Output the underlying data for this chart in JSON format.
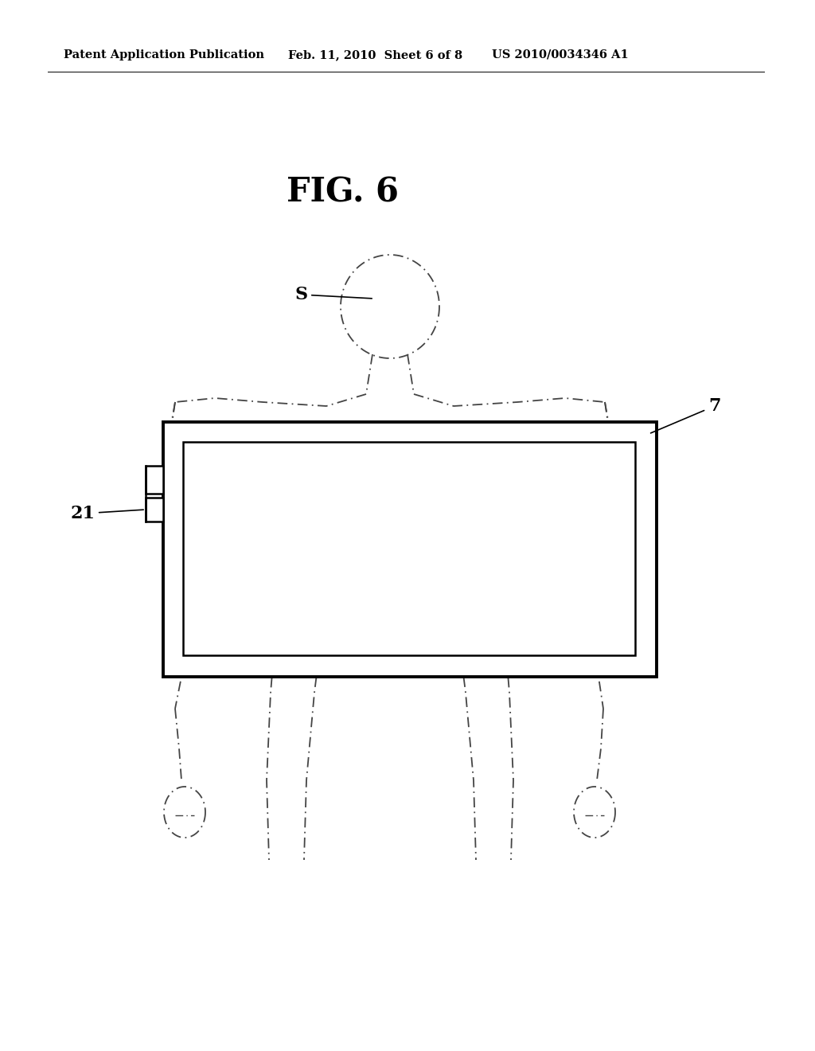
{
  "title": "FIG. 6",
  "header_left": "Patent Application Publication",
  "header_center": "Feb. 11, 2010  Sheet 6 of 8",
  "header_right": "US 2010/0034346 A1",
  "bg_color": "#ffffff",
  "line_color": "#000000",
  "dash_color": "#444444",
  "subject_label": "S",
  "connector_label": "21",
  "detector_label": "7"
}
